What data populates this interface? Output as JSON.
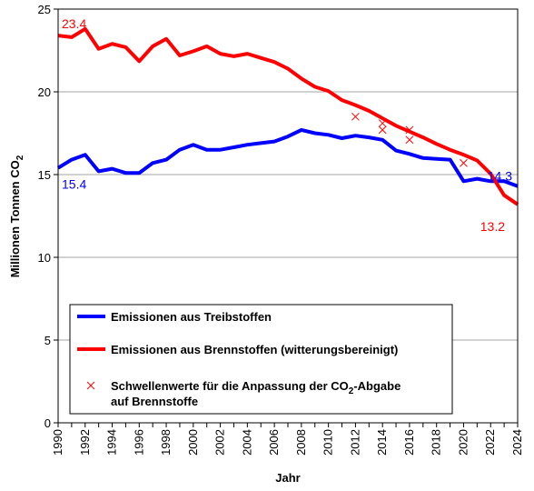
{
  "chart_data": {
    "type": "line",
    "xlabel": "Jahr",
    "ylabel_main": "Millionen Tonnen CO",
    "ylabel_sub": "2",
    "xlim": [
      1990,
      2024
    ],
    "ylim": [
      0,
      25
    ],
    "yticks": [
      0,
      5,
      10,
      15,
      20,
      25
    ],
    "xticks": [
      1990,
      1992,
      1994,
      1996,
      1998,
      2000,
      2002,
      2004,
      2006,
      2008,
      2010,
      2012,
      2014,
      2016,
      2018,
      2020,
      2022,
      2024
    ],
    "grid": "horizontal",
    "legend_position": "bottom-left",
    "series": [
      {
        "name": "Emissionen aus Treibstoffen",
        "color": "#0000ff",
        "x": [
          1990,
          1991,
          1992,
          1993,
          1994,
          1995,
          1996,
          1997,
          1998,
          1999,
          2000,
          2001,
          2002,
          2003,
          2004,
          2005,
          2006,
          2007,
          2008,
          2009,
          2010,
          2011,
          2012,
          2013,
          2014,
          2015,
          2016,
          2017,
          2018,
          2019,
          2020,
          2021,
          2022,
          2023,
          2024
        ],
        "y": [
          15.4,
          15.9,
          16.2,
          15.2,
          15.35,
          15.1,
          15.1,
          15.7,
          15.9,
          16.5,
          16.8,
          16.5,
          16.5,
          16.65,
          16.8,
          16.9,
          17.0,
          17.3,
          17.7,
          17.5,
          17.4,
          17.2,
          17.35,
          17.25,
          17.1,
          16.45,
          16.25,
          16.0,
          15.95,
          15.9,
          14.6,
          14.75,
          14.6,
          14.6,
          14.3
        ]
      },
      {
        "name": "Emissionen aus Brennstoffen (witterungsbereinigt)",
        "color": "#ff0000",
        "x": [
          1990,
          1991,
          1992,
          1993,
          1994,
          1995,
          1996,
          1997,
          1998,
          1999,
          2000,
          2001,
          2002,
          2003,
          2004,
          2005,
          2006,
          2007,
          2008,
          2009,
          2010,
          2011,
          2012,
          2013,
          2014,
          2015,
          2016,
          2017,
          2018,
          2019,
          2020,
          2021,
          2022,
          2023,
          2024
        ],
        "y": [
          23.4,
          23.3,
          23.8,
          22.6,
          22.9,
          22.7,
          21.85,
          22.75,
          23.2,
          22.2,
          22.45,
          22.75,
          22.3,
          22.15,
          22.3,
          22.05,
          21.8,
          21.4,
          20.8,
          20.3,
          20.05,
          19.5,
          19.2,
          18.85,
          18.4,
          17.95,
          17.6,
          17.25,
          16.85,
          16.5,
          16.2,
          15.85,
          15.05,
          13.75,
          13.2
        ]
      },
      {
        "name_line1": "Schwellenwerte für die Anpassung der CO",
        "name_sub": "2",
        "name_line1_end": "-Abgabe",
        "name_line2": "auf Brennstoffe",
        "color": "#ff0000",
        "marker": "x",
        "x": [
          2012,
          2014,
          2014,
          2016,
          2016,
          2020
        ],
        "y": [
          18.5,
          18.1,
          17.7,
          17.7,
          17.1,
          15.7
        ]
      }
    ],
    "annotations": [
      {
        "text": "23.4",
        "color": "#ff0000"
      },
      {
        "text": "15.4",
        "color": "#0000ff"
      },
      {
        "text": "14.3",
        "color": "#0000ff"
      },
      {
        "text": "13.2",
        "color": "#ff0000"
      }
    ]
  }
}
